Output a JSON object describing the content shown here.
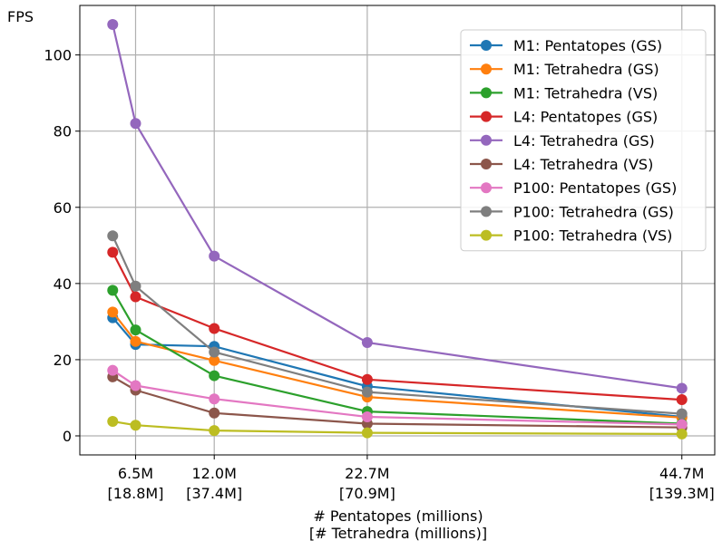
{
  "chart_data": {
    "type": "line",
    "title": "",
    "ylabel": "FPS",
    "xlabel": "# Pentatopes (millions)",
    "xlabel2": "[# Tetrahedra (millions)]",
    "xlim": [
      2.6,
      47.0
    ],
    "ylim": [
      -5,
      113
    ],
    "yticks": [
      0,
      20,
      40,
      60,
      80,
      100
    ],
    "xticks": [
      {
        "value": 6.5,
        "label": "6.5M",
        "sublabel": "[18.8M]"
      },
      {
        "value": 12.0,
        "label": "12.0M",
        "sublabel": "[37.4M]"
      },
      {
        "value": 22.7,
        "label": "22.7M",
        "sublabel": "[70.9M]"
      },
      {
        "value": 44.7,
        "label": "44.7M",
        "sublabel": "[139.3M]"
      }
    ],
    "x": [
      4.9,
      6.5,
      12.0,
      22.7,
      44.7
    ],
    "grid": true,
    "legend_position": "top-right",
    "series": [
      {
        "name": "M1: Pentatopes (GS)",
        "color": "#1f77b4",
        "values": [
          31,
          24,
          23.5,
          13,
          5
        ]
      },
      {
        "name": "M1: Tetrahedra (GS)",
        "color": "#ff7f0e",
        "values": [
          32.5,
          24.8,
          19.8,
          10.2,
          4.8
        ]
      },
      {
        "name": "M1: Tetrahedra (VS)",
        "color": "#2ca02c",
        "values": [
          38.2,
          27.8,
          15.8,
          6.4,
          3.2
        ]
      },
      {
        "name": "L4: Pentatopes (GS)",
        "color": "#d62728",
        "values": [
          48.2,
          36.5,
          28.2,
          14.8,
          9.5
        ]
      },
      {
        "name": "L4: Tetrahedra (GS)",
        "color": "#9467bd",
        "values": [
          108,
          82,
          47.2,
          24.5,
          12.5
        ]
      },
      {
        "name": "L4: Tetrahedra (VS)",
        "color": "#8c564b",
        "values": [
          15.5,
          12,
          6,
          3.2,
          2.2
        ]
      },
      {
        "name": "P100: Pentatopes (GS)",
        "color": "#e377c2",
        "values": [
          17.2,
          13.2,
          9.7,
          5,
          3
        ]
      },
      {
        "name": "P100: Tetrahedra (GS)",
        "color": "#7f7f7f",
        "values": [
          52.5,
          39.3,
          22,
          11.5,
          5.8
        ]
      },
      {
        "name": "P100: Tetrahedra (VS)",
        "color": "#bcbd22",
        "values": [
          3.8,
          2.8,
          1.4,
          0.8,
          0.5
        ]
      }
    ]
  }
}
